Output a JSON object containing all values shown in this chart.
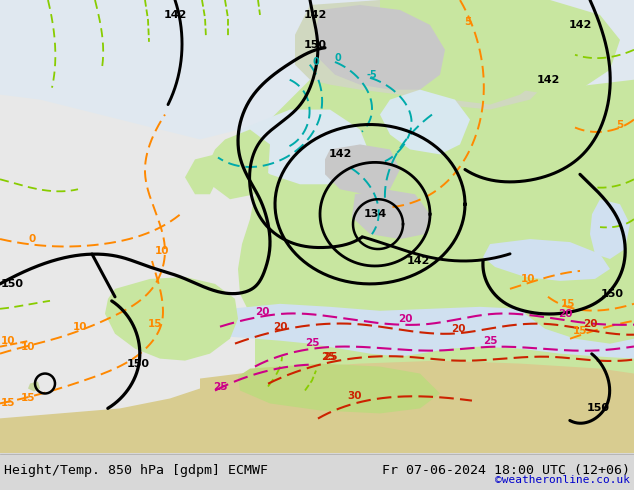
{
  "title_left": "Height/Temp. 850 hPa [gdpm] ECMWF",
  "title_right": "Fr 07-06-2024 18:00 UTC (12+06)",
  "credit": "©weatheronline.co.uk",
  "fig_width": 6.34,
  "fig_height": 4.9,
  "dpi": 100,
  "title_fontsize": 9.5,
  "credit_color": "#0000cc",
  "credit_fontsize": 8,
  "map_bg": "#f0f0f0",
  "green_land": "#c8e6a0",
  "gray_land": "#c8c8c8"
}
